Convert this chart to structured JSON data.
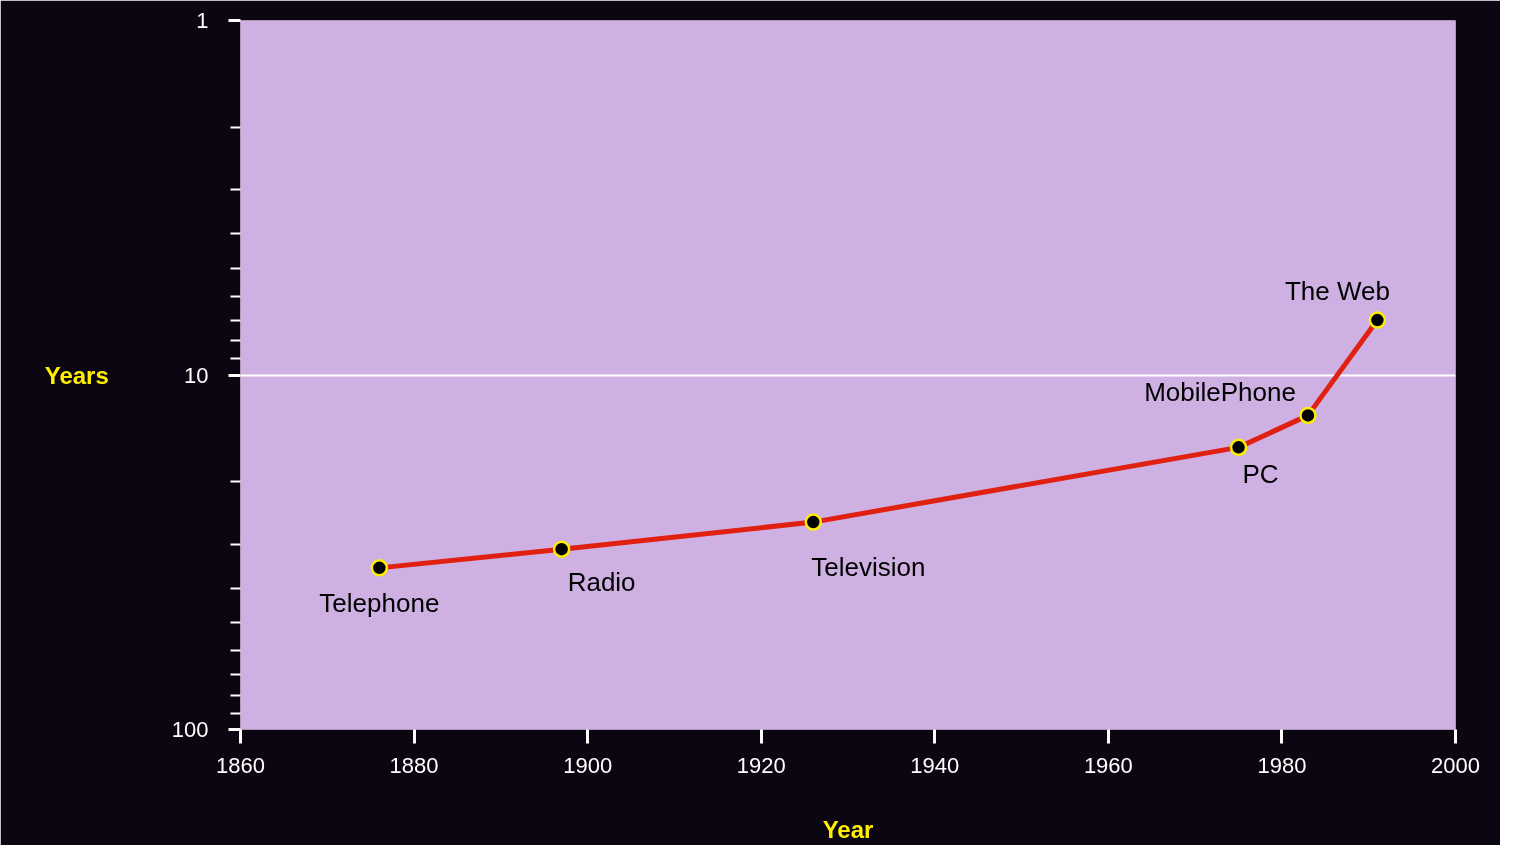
{
  "chart_data": {
    "type": "line",
    "xlabel": "Year",
    "ylabel": "Years",
    "log": "y",
    "x": [
      1876,
      1897,
      1926,
      1975,
      1983,
      1991
    ],
    "series": [
      {
        "color": "#e02010",
        "values": [
          35,
          31,
          26,
          16,
          13,
          7
        ]
      }
    ],
    "annotations": [
      {
        "text": "Telephone",
        "x": 1876,
        "y": 35
      },
      {
        "text": "Radio",
        "x": 1897,
        "y": 31
      },
      {
        "text": "Television",
        "x": 1926,
        "y": 26
      },
      {
        "text": "PC",
        "x": 1975,
        "y": 16
      },
      {
        "text": "MobilePhone",
        "x": 1983,
        "y": 13
      },
      {
        "text": "The Web",
        "x": 1991,
        "y": 7
      }
    ],
    "xlim": [
      1860,
      2000
    ],
    "xticks": [
      1860,
      1880,
      1900,
      1920,
      1940,
      1960,
      1980,
      2000
    ],
    "ylim": [
      100,
      1
    ],
    "yticks": [
      1,
      10,
      100
    ],
    "grid": "y",
    "marker": "circle",
    "line_style": "solid"
  }
}
